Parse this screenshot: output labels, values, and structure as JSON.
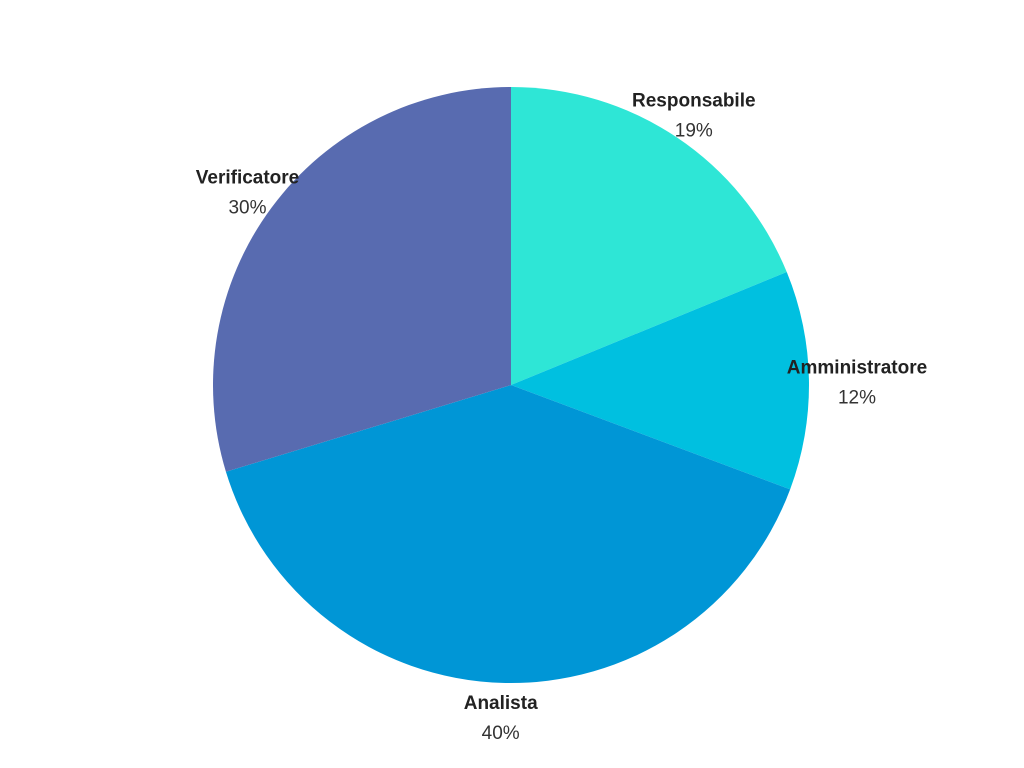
{
  "chart_data": {
    "type": "pie",
    "title": "",
    "start": "top",
    "direction": "clockwise",
    "labels": [
      "Responsabile",
      "Amministratore",
      "Analista",
      "Verificatore"
    ],
    "values": [
      19,
      12,
      40,
      30
    ],
    "percent_labels": [
      "19%",
      "12%",
      "40%",
      "30%"
    ],
    "colors": [
      "#2ee6d6",
      "#00c0e0",
      "#0096d6",
      "#586bb0"
    ],
    "legend": "none"
  }
}
